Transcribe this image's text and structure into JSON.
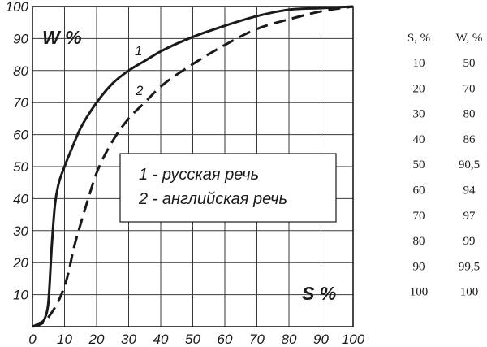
{
  "chart_data": {
    "type": "line",
    "xlabel": "S %",
    "ylabel": "W %",
    "xlim": [
      0,
      100
    ],
    "ylim": [
      0,
      100
    ],
    "xticks": [
      "0",
      "10",
      "20",
      "30",
      "40",
      "50",
      "60",
      "70",
      "80",
      "90",
      "100"
    ],
    "yticks": [
      "10",
      "20",
      "30",
      "40",
      "50",
      "60",
      "70",
      "80",
      "90",
      "100"
    ],
    "grid": true,
    "series": [
      {
        "name": "1 - русская речь",
        "tag": "1",
        "style": "solid",
        "x": [
          0,
          2,
          4,
          5,
          6,
          7,
          8,
          10,
          12,
          15,
          20,
          25,
          30,
          35,
          40,
          50,
          60,
          70,
          80,
          90,
          100
        ],
        "y": [
          0,
          1,
          3,
          8,
          25,
          38,
          44,
          50,
          55,
          62,
          70,
          76,
          80,
          83,
          86,
          90.5,
          94,
          97,
          99,
          99.5,
          100
        ]
      },
      {
        "name": "2 - английская речь",
        "tag": "2",
        "style": "dashed",
        "x": [
          0,
          3,
          5,
          7,
          9,
          11,
          13,
          15,
          18,
          20,
          25,
          30,
          35,
          40,
          50,
          60,
          70,
          80,
          90,
          100
        ],
        "y": [
          0,
          1,
          3,
          6,
          10,
          16,
          25,
          32,
          42,
          48,
          58,
          65,
          70,
          75,
          82,
          88,
          93,
          96,
          98.5,
          100
        ]
      }
    ],
    "legend": {
      "position": "center",
      "entries": [
        "1 - русская речь",
        "2 - английская речь"
      ]
    },
    "table": {
      "headers": [
        "S, %",
        "W, %"
      ],
      "rows": [
        [
          "10",
          "50"
        ],
        [
          "20",
          "70"
        ],
        [
          "30",
          "80"
        ],
        [
          "40",
          "86"
        ],
        [
          "50",
          "90,5"
        ],
        [
          "60",
          "94"
        ],
        [
          "70",
          "97"
        ],
        [
          "80",
          "99"
        ],
        [
          "90",
          "99,5"
        ],
        [
          "100",
          "100"
        ]
      ]
    }
  }
}
